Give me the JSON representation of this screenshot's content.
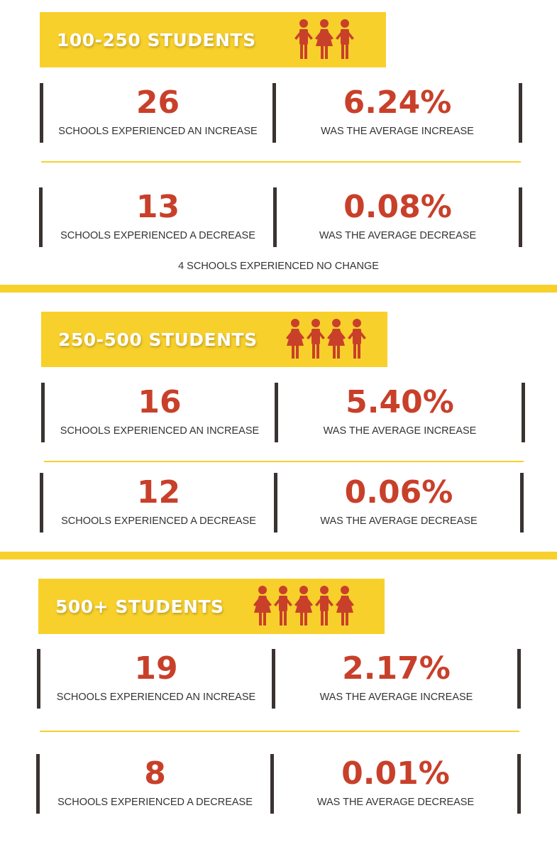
{
  "colors": {
    "accent": "#f8d02c",
    "number": "#c8402a",
    "bar": "#3a3332",
    "banner_text": "#ffffff"
  },
  "sections": [
    {
      "title": "100-250 STUDENTS",
      "people_icons": 3,
      "increase": {
        "count": "26",
        "count_caption": "SCHOOLS EXPERIENCED AN INCREASE",
        "avg": "6.24%",
        "avg_caption": "WAS THE AVERAGE INCREASE"
      },
      "decrease": {
        "count": "13",
        "count_caption": "SCHOOLS EXPERIENCED A DECREASE",
        "avg": "0.08%",
        "avg_caption": "WAS THE AVERAGE DECREASE"
      },
      "note": "4 SCHOOLS EXPERIENCED NO CHANGE"
    },
    {
      "title": "250-500 STUDENTS",
      "people_icons": 4,
      "increase": {
        "count": "16",
        "count_caption": "SCHOOLS EXPERIENCED AN INCREASE",
        "avg": "5.40%",
        "avg_caption": "WAS THE AVERAGE INCREASE"
      },
      "decrease": {
        "count": "12",
        "count_caption": "SCHOOLS EXPERIENCED A DECREASE",
        "avg": "0.06%",
        "avg_caption": "WAS THE AVERAGE DECREASE"
      }
    },
    {
      "title": "500+ STUDENTS",
      "people_icons": 5,
      "increase": {
        "count": "19",
        "count_caption": "SCHOOLS EXPERIENCED AN INCREASE",
        "avg": "2.17%",
        "avg_caption": "WAS THE AVERAGE INCREASE"
      },
      "decrease": {
        "count": "8",
        "count_caption": "SCHOOLS EXPERIENCED A DECREASE",
        "avg": "0.01%",
        "avg_caption": "WAS THE AVERAGE DECREASE"
      }
    }
  ]
}
